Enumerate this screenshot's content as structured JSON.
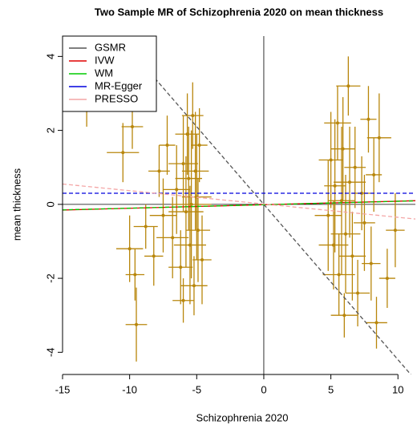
{
  "chart_data": {
    "type": "scatter",
    "title": "Two Sample MR of Schizophrenia 2020 on mean thickness",
    "x_label": "Schizophrenia 2020",
    "y_label": "mean thickness",
    "xlim": [
      -15,
      11.3
    ],
    "ylim": [
      -4.6,
      4.55
    ],
    "xticks": [
      -15,
      -10,
      -5,
      0,
      5,
      10
    ],
    "yticks": [
      -4,
      -2,
      0,
      2,
      4
    ],
    "points": {
      "color": "#b8860b",
      "x": [
        -13.2,
        -9.8,
        -10.5,
        -9.6,
        -9.5,
        -10.0,
        -8.8,
        -8.2,
        -7.8,
        -7.5,
        -7.2,
        -6.8,
        -6.5,
        -6.2,
        -6.0,
        -5.8,
        -5.6,
        -5.5,
        -5.3,
        -5.2,
        -5.0,
        -4.9,
        -4.8,
        -4.6,
        -5.4,
        -5.7,
        -6.0,
        -5.1,
        4.8,
        5.0,
        5.2,
        5.3,
        5.5,
        5.6,
        5.8,
        5.9,
        6.1,
        6.3,
        6.4,
        6.6,
        6.8,
        7.0,
        7.3,
        7.5,
        7.8,
        8.0,
        8.2,
        8.4,
        9.2,
        9.8,
        8.6,
        6.0
      ],
      "y": [
        2.6,
        2.1,
        1.4,
        -1.9,
        -3.25,
        -1.2,
        -0.6,
        -1.4,
        0.9,
        -0.3,
        1.6,
        -0.9,
        0.4,
        -1.7,
        1.1,
        -0.2,
        0.7,
        -1.1,
        2.4,
        -2.2,
        0.2,
        -0.7,
        1.6,
        -1.5,
        0.0,
        1.9,
        -2.6,
        0.9,
        -0.3,
        1.2,
        -1.1,
        0.5,
        2.2,
        -1.9,
        0.1,
        1.5,
        -0.8,
        3.2,
        0.6,
        -1.4,
        1.0,
        -2.4,
        0.3,
        -0.5,
        2.3,
        -1.6,
        0.8,
        -3.2,
        -2.0,
        -0.7,
        1.8,
        -3.0
      ],
      "xerr": [
        1.5,
        0.8,
        1.2,
        0.7,
        0.8,
        1.0,
        0.9,
        0.7,
        0.8,
        1.0,
        0.6,
        1.2,
        1.0,
        0.9,
        1.1,
        1.3,
        1.0,
        1.2,
        0.8,
        1.0,
        1.1,
        0.9,
        0.6,
        0.7,
        1.5,
        0.9,
        0.8,
        1.0,
        1.0,
        0.9,
        1.1,
        0.8,
        1.0,
        1.2,
        1.0,
        0.9,
        1.1,
        0.9,
        1.2,
        1.0,
        0.8,
        0.9,
        0.7,
        0.8,
        0.6,
        0.7,
        0.6,
        0.8,
        0.6,
        0.7,
        0.9,
        1.0
      ],
      "yerr": [
        0.5,
        0.6,
        0.8,
        0.7,
        1.0,
        0.9,
        0.6,
        0.8,
        0.7,
        1.0,
        0.8,
        1.1,
        1.2,
        1.0,
        1.3,
        1.5,
        1.4,
        1.6,
        0.9,
        0.8,
        1.7,
        1.4,
        1.0,
        1.2,
        2.0,
        1.1,
        0.6,
        1.6,
        1.5,
        1.3,
        1.2,
        1.8,
        1.0,
        1.1,
        2.0,
        1.4,
        1.6,
        0.8,
        1.5,
        1.2,
        1.1,
        0.9,
        1.0,
        1.3,
        0.9,
        1.0,
        1.0,
        0.7,
        0.8,
        1.0,
        1.2,
        0.6
      ]
    },
    "lines": [
      {
        "name": "GSMR",
        "color": "#555555",
        "dashed": true,
        "slope": -0.42,
        "intercept": 0.0
      },
      {
        "name": "IVW",
        "color": "#e00000",
        "dashed": false,
        "slope": 0.0096,
        "intercept": -0.01
      },
      {
        "name": "WM",
        "color": "#00cc00",
        "dashed": true,
        "slope": 0.0093,
        "intercept": -0.01
      },
      {
        "name": "MR-Egger",
        "color": "#0000dd",
        "dashed": true,
        "slope": 0.0,
        "intercept": 0.3
      },
      {
        "name": "PRESSO",
        "color": "#f4a6a6",
        "dashed": true,
        "slope": -0.036,
        "intercept": 0.01
      }
    ]
  }
}
